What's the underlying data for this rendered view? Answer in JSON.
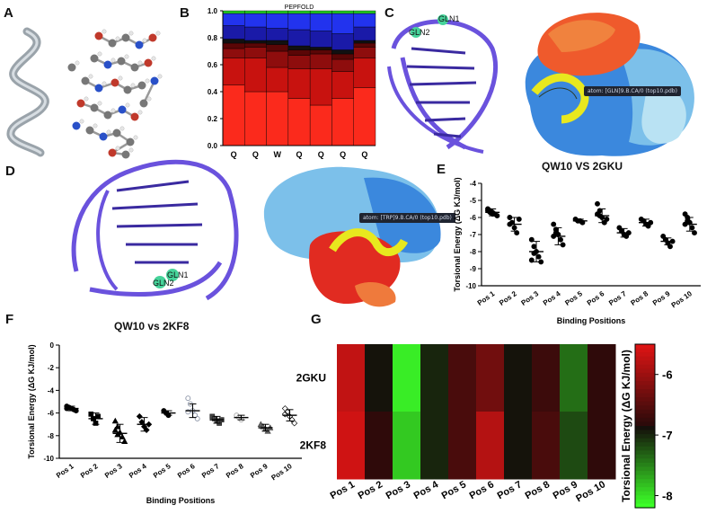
{
  "panels": {
    "a": {
      "letter": "A"
    },
    "b": {
      "letter": "B"
    },
    "c": {
      "letter": "C",
      "tag_1": "GLN1",
      "tag_2": "GLN2",
      "atom_label": "atom: [GLN]9.B.CA/0 (top10.pdb)"
    },
    "d": {
      "letter": "D",
      "tag_1": "GLN1",
      "tag_2": "GLN2",
      "atom_label": "atom: [TRP]9.B.CA/0 (top10.pdb)"
    },
    "e": {
      "letter": "E",
      "caption": "QW10 VS 2GKU"
    },
    "f": {
      "letter": "F",
      "caption": "QW10 vs 2KF8"
    },
    "g": {
      "letter": "G"
    }
  },
  "colors": {
    "dna": "#6a52dd",
    "helix": "#e8e81e",
    "surface_red": "#e12b21",
    "surface_blue": "#3b88dd",
    "surface_light": "#a9d7ee",
    "surface_orange": "#ef7a3c"
  },
  "chart_data": [
    {
      "id": "B",
      "type": "bar",
      "stacked": true,
      "title": "PEPFOLD",
      "categories": [
        "Q",
        "Q",
        "W",
        "Q",
        "Q",
        "Q",
        "Q"
      ],
      "ylim": [
        0,
        1.0
      ],
      "yticks": [
        "0.0",
        "0.2",
        "0.4",
        "0.6",
        "0.8",
        "1.0"
      ],
      "series": [
        {
          "color": "#fb2a1c",
          "values": [
            0.45,
            0.4,
            0.4,
            0.35,
            0.3,
            0.35,
            0.43
          ]
        },
        {
          "color": "#c8120f",
          "values": [
            0.2,
            0.25,
            0.18,
            0.22,
            0.27,
            0.2,
            0.22
          ]
        },
        {
          "color": "#8e0d0d",
          "values": [
            0.07,
            0.08,
            0.12,
            0.1,
            0.11,
            0.09,
            0.08
          ]
        },
        {
          "color": "#5a0606",
          "values": [
            0.04,
            0.03,
            0.05,
            0.04,
            0.03,
            0.04,
            0.03
          ]
        },
        {
          "color": "#111111",
          "values": [
            0.03,
            0.02,
            0.03,
            0.03,
            0.02,
            0.03,
            0.02
          ]
        },
        {
          "color": "#1a1aa8",
          "values": [
            0.1,
            0.1,
            0.09,
            0.12,
            0.12,
            0.12,
            0.1
          ]
        },
        {
          "color": "#2233ee",
          "values": [
            0.09,
            0.1,
            0.11,
            0.12,
            0.13,
            0.15,
            0.1
          ]
        },
        {
          "color": "#22cc22",
          "values": [
            0.02,
            0.02,
            0.02,
            0.02,
            0.02,
            0.02,
            0.02
          ]
        }
      ]
    },
    {
      "id": "E",
      "type": "scatter",
      "ylabel": "Torsional Energy (ΔG KJ/mol)",
      "xlabel": "Binding Positions",
      "categories": [
        "Pos 1",
        "Pos 2",
        "Pos 3",
        "Pos 4",
        "Pos 5",
        "Pos 6",
        "Pos 7",
        "Pos 8",
        "Pos 9",
        "Pos 10"
      ],
      "ylim": [
        -10,
        -4
      ],
      "yticks": [
        "-10",
        "-9",
        "-8",
        "-7",
        "-6",
        "-5",
        "-4"
      ],
      "means": [
        -5.7,
        -6.4,
        -8.0,
        -7.1,
        -6.2,
        -5.9,
        -6.9,
        -6.3,
        -7.4,
        -6.4
      ],
      "sds": [
        0.2,
        0.4,
        0.6,
        0.5,
        0.1,
        0.4,
        0.25,
        0.2,
        0.2,
        0.4
      ],
      "points": [
        [
          -5.5,
          -5.6,
          -5.7,
          -5.8,
          -5.9,
          -5.6,
          -5.7,
          -5.8
        ],
        [
          -6.0,
          -6.3,
          -6.6,
          -6.9,
          -6.1,
          -6.4
        ],
        [
          -7.3,
          -7.7,
          -8.0,
          -8.3,
          -8.6,
          -8.5,
          -8.1
        ],
        [
          -6.4,
          -6.7,
          -7.0,
          -7.3,
          -7.6,
          -7.1,
          -6.9
        ],
        [
          -6.1,
          -6.2,
          -6.2,
          -6.3
        ],
        [
          -5.2,
          -5.6,
          -6.0,
          -6.3,
          -6.1,
          -5.8,
          -5.9
        ],
        [
          -6.6,
          -6.8,
          -7.0,
          -7.1,
          -6.9
        ],
        [
          -6.1,
          -6.2,
          -6.4,
          -6.5,
          -6.3
        ],
        [
          -7.1,
          -7.3,
          -7.5,
          -7.7,
          -7.4
        ],
        [
          -5.8,
          -6.0,
          -6.3,
          -6.6,
          -6.9,
          -6.4,
          -6.2
        ]
      ]
    },
    {
      "id": "F",
      "type": "scatter",
      "ylabel": "Torsional Energy (ΔG KJ/mol)",
      "xlabel": "Binding Positions",
      "categories": [
        "Pos 1",
        "Pos 2",
        "Pos 3",
        "Pos 4",
        "Pos 5",
        "Pos 6",
        "Pos 7",
        "Pos 8",
        "Pos 9",
        "Pos 10"
      ],
      "ylim": [
        -10,
        0
      ],
      "yticks": [
        "-10",
        "-8",
        "-6",
        "-4",
        "-2",
        "0"
      ],
      "means": [
        -5.6,
        -6.5,
        -7.8,
        -7.0,
        -6.0,
        -5.8,
        -6.6,
        -6.4,
        -7.3,
        -6.2
      ],
      "sds": [
        0.2,
        0.5,
        0.8,
        0.6,
        0.2,
        0.6,
        0.3,
        0.2,
        0.3,
        0.5
      ],
      "points": [
        [
          -5.4,
          -5.5,
          -5.6,
          -5.7,
          -5.8,
          -5.6
        ],
        [
          -6.1,
          -6.5,
          -6.9,
          -6.3
        ],
        [
          -6.7,
          -7.2,
          -7.7,
          -8.1,
          -8.5,
          -7.5,
          -7.9
        ],
        [
          -6.3,
          -6.8,
          -7.2,
          -7.5,
          -7.0
        ],
        [
          -5.8,
          -6.0,
          -6.2
        ],
        [
          -4.7,
          -5.2,
          -5.8,
          -6.2,
          -6.5,
          -5.9
        ],
        [
          -6.3,
          -6.5,
          -6.7,
          -6.9,
          -6.6
        ],
        [
          -6.2,
          -6.4,
          -6.6
        ],
        [
          -7.0,
          -7.2,
          -7.4,
          -7.6,
          -7.3
        ],
        [
          -5.6,
          -5.9,
          -6.3,
          -6.6,
          -6.9,
          -6.1
        ]
      ]
    },
    {
      "id": "G",
      "type": "heatmap",
      "rows": [
        "2GKU",
        "2KF8"
      ],
      "columns": [
        "Pos 1",
        "Pos 2",
        "Pos 3",
        "Pos 4",
        "Pos 5",
        "Pos 6",
        "Pos 7",
        "Pos 8",
        "Pos 9",
        "Pos 10"
      ],
      "values": [
        [
          -5.7,
          -6.9,
          -8.1,
          -7.0,
          -6.6,
          -6.3,
          -6.9,
          -6.7,
          -7.4,
          -6.8
        ],
        [
          -5.6,
          -6.8,
          -7.9,
          -7.0,
          -6.6,
          -5.8,
          -6.9,
          -6.6,
          -7.2,
          -6.8
        ]
      ],
      "colorbar_label": "Torsional Energy (ΔG KJ/mol)",
      "colorbar_ticks": [
        "-6",
        "-7",
        "-8"
      ],
      "vmin": -8.2,
      "vmax": -5.5
    }
  ]
}
